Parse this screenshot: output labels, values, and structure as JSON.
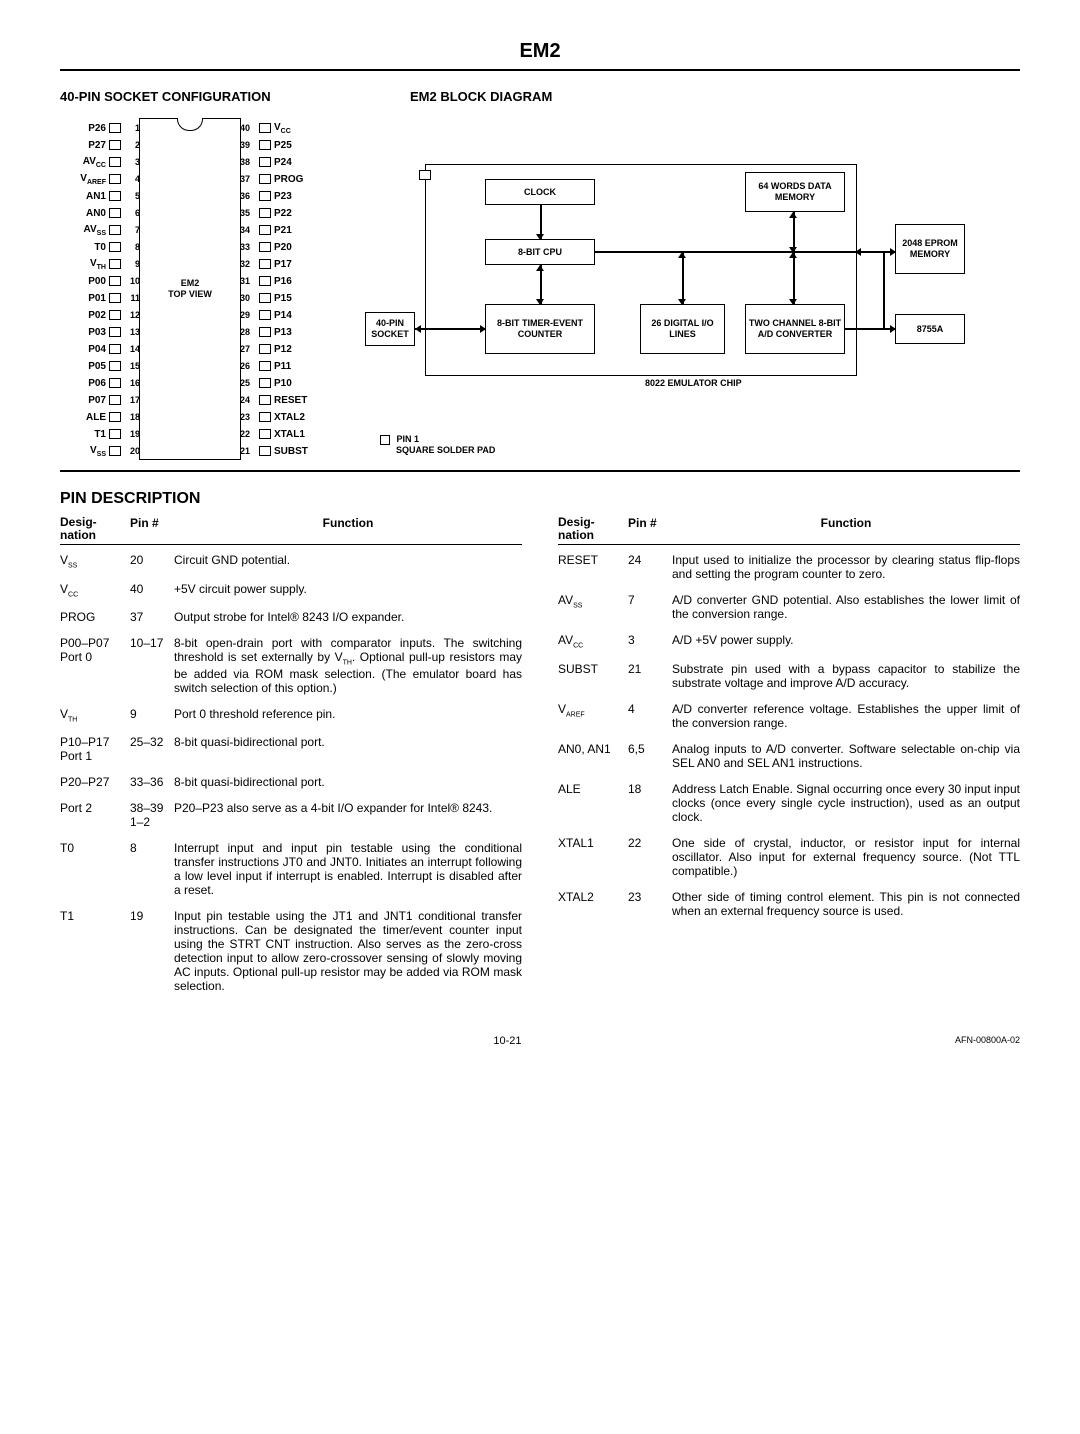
{
  "page_title": "EM2",
  "section_socket_title": "40-PIN SOCKET CONFIGURATION",
  "section_block_title": "EM2 BLOCK DIAGRAM",
  "dip_center_line1": "EM2",
  "dip_center_line2": "TOP VIEW",
  "pins_left": [
    {
      "num": "1",
      "name": "P26"
    },
    {
      "num": "2",
      "name": "P27"
    },
    {
      "num": "3",
      "name": "AV_CC"
    },
    {
      "num": "4",
      "name": "V_AREF"
    },
    {
      "num": "5",
      "name": "AN1"
    },
    {
      "num": "6",
      "name": "AN0"
    },
    {
      "num": "7",
      "name": "AV_SS"
    },
    {
      "num": "8",
      "name": "T0"
    },
    {
      "num": "9",
      "name": "V_TH"
    },
    {
      "num": "10",
      "name": "P00"
    },
    {
      "num": "11",
      "name": "P01"
    },
    {
      "num": "12",
      "name": "P02"
    },
    {
      "num": "13",
      "name": "P03"
    },
    {
      "num": "14",
      "name": "P04"
    },
    {
      "num": "15",
      "name": "P05"
    },
    {
      "num": "16",
      "name": "P06"
    },
    {
      "num": "17",
      "name": "P07"
    },
    {
      "num": "18",
      "name": "ALE"
    },
    {
      "num": "19",
      "name": "T1"
    },
    {
      "num": "20",
      "name": "V_SS"
    }
  ],
  "pins_right": [
    {
      "num": "40",
      "name": "V_CC"
    },
    {
      "num": "39",
      "name": "P25"
    },
    {
      "num": "38",
      "name": "P24"
    },
    {
      "num": "37",
      "name": "PROG"
    },
    {
      "num": "36",
      "name": "P23"
    },
    {
      "num": "35",
      "name": "P22"
    },
    {
      "num": "34",
      "name": "P21"
    },
    {
      "num": "33",
      "name": "P20"
    },
    {
      "num": "32",
      "name": "P17"
    },
    {
      "num": "31",
      "name": "P16"
    },
    {
      "num": "30",
      "name": "P15"
    },
    {
      "num": "29",
      "name": "P14"
    },
    {
      "num": "28",
      "name": "P13"
    },
    {
      "num": "27",
      "name": "P12"
    },
    {
      "num": "26",
      "name": "P11"
    },
    {
      "num": "25",
      "name": "P10"
    },
    {
      "num": "24",
      "name": "RESET"
    },
    {
      "num": "23",
      "name": "XTAL2"
    },
    {
      "num": "22",
      "name": "XTAL1"
    },
    {
      "num": "21",
      "name": "SUBST"
    }
  ],
  "pin1_note_a": "PIN 1",
  "pin1_note_b": "SQUARE SOLDER PAD",
  "blocks": {
    "socket_40": "40-PIN SOCKET",
    "clock": "CLOCK",
    "cpu": "8-BIT CPU",
    "timer": "8-BIT TIMER-EVENT COUNTER",
    "io": "26 DIGITAL I/O LINES",
    "adc": "TWO CHANNEL 8-BIT A/D CONVERTER",
    "ram": "64 WORDS DATA MEMORY",
    "eprom": "2048 EPROM MEMORY",
    "ext": "8755A",
    "chip_label": "8022 EMULATOR CHIP"
  },
  "pin_desc_title": "PIN DESCRIPTION",
  "head_desig": "Desig-\nnation",
  "head_pin": "Pin #",
  "head_func": "Function",
  "rows_left": [
    {
      "desig": "V_SS",
      "pin": "20",
      "func": "Circuit GND potential."
    },
    {
      "desig": "V_CC",
      "pin": "40",
      "func": "+5V circuit power supply."
    },
    {
      "desig": "PROG",
      "pin": "37",
      "func": "Output strobe for Intel® 8243 I/O expander."
    },
    {
      "desig": "P00–P07 Port 0",
      "pin": "10–17",
      "func": "8-bit open-drain port with comparator inputs. The switching threshold is set externally by V_TH. Optional pull-up resistors may be added via ROM mask selection. (The emulator board has switch selection of this option.)"
    },
    {
      "desig": "V_TH",
      "pin": "9",
      "func": "Port 0 threshold reference pin."
    },
    {
      "desig": "P10–P17 Port 1",
      "pin": "25–32",
      "func": "8-bit quasi-bidirectional port."
    },
    {
      "desig": "P20–P27",
      "pin": "33–36",
      "func": "8-bit quasi-bidirectional port."
    },
    {
      "desig": "Port 2",
      "pin": "38–39 1–2",
      "func": "P20–P23 also serve as a 4-bit I/O expander for Intel® 8243."
    },
    {
      "desig": "T0",
      "pin": "8",
      "func": "Interrupt input and input pin testable using the conditional transfer instructions JT0 and JNT0. Initiates an interrupt following a low level input if interrupt is enabled. Interrupt is disabled after a reset."
    },
    {
      "desig": "T1",
      "pin": "19",
      "func": "Input pin testable using the JT1 and JNT1 conditional transfer instructions. Can be designated the timer/event counter input using the STRT CNT instruction. Also serves as the zero-cross detection input to allow zero-crossover sensing of slowly moving AC inputs. Optional pull-up resistor may be added via ROM mask selection."
    }
  ],
  "rows_right": [
    {
      "desig": "RESET",
      "pin": "24",
      "func": "Input used to initialize the processor by clearing status flip-flops and setting the program counter to zero."
    },
    {
      "desig": "AV_SS",
      "pin": "7",
      "func": "A/D converter GND potential. Also establishes the lower limit of the conversion range."
    },
    {
      "desig": "AV_CC",
      "pin": "3",
      "func": "A/D +5V power supply."
    },
    {
      "desig": "SUBST",
      "pin": "21",
      "func": "Substrate pin used with a bypass capacitor to stabilize the substrate voltage and improve A/D accuracy."
    },
    {
      "desig": "V_AREF",
      "pin": "4",
      "func": "A/D converter reference voltage. Establishes the upper limit of the conversion range."
    },
    {
      "desig": "AN0, AN1",
      "pin": "6,5",
      "func": "Analog inputs to A/D converter. Software selectable on-chip via SEL AN0 and SEL AN1 instructions."
    },
    {
      "desig": "ALE",
      "pin": "18",
      "func": "Address Latch Enable. Signal occurring once every 30 input input clocks (once every single cycle instruction), used as an output clock."
    },
    {
      "desig": "XTAL1",
      "pin": "22",
      "func": "One side of crystal, inductor, or resistor input for internal oscillator. Also input for external frequency source. (Not TTL compatible.)"
    },
    {
      "desig": "XTAL2",
      "pin": "23",
      "func": "Other side of timing control element. This pin is not connected when an external frequency source is used."
    }
  ],
  "footer_page": "10-21",
  "footer_code": "AFN-00800A-02"
}
